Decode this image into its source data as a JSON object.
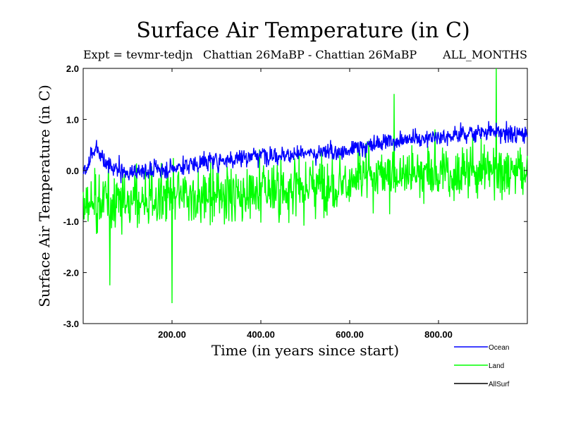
{
  "chart_data": {
    "type": "line",
    "title": "Surface Air Temperature (in C)",
    "subtitle_left": "Expt = tevmr-tedjn",
    "subtitle_mid": "Chattian  26MaBP - Chattian  26MaBP",
    "subtitle_right": "ALL_MONTHS",
    "xlabel": "Time (in years since start)",
    "ylabel": "Surface Air Temperature (in C)",
    "xlim": [
      0,
      1000
    ],
    "ylim": [
      -3.0,
      2.0
    ],
    "x_ticks": [
      200,
      400,
      600,
      800
    ],
    "x_tick_labels": [
      "200.00",
      "400.00",
      "600.00",
      "800.00"
    ],
    "y_ticks": [
      -3.0,
      -2.0,
      -1.0,
      0.0,
      1.0,
      2.0
    ],
    "y_tick_labels": [
      "-3.0",
      "-2.0",
      "-1.0",
      "0.0",
      "1.0",
      "2.0"
    ],
    "series": [
      {
        "name": "Land",
        "color": "#00ff00",
        "trend": [
          [
            0,
            -0.75
          ],
          [
            50,
            -0.55
          ],
          [
            100,
            -0.6
          ],
          [
            200,
            -0.55
          ],
          [
            300,
            -0.45
          ],
          [
            400,
            -0.4
          ],
          [
            500,
            -0.3
          ],
          [
            600,
            -0.25
          ],
          [
            700,
            -0.05
          ],
          [
            800,
            -0.05
          ],
          [
            900,
            0.0
          ],
          [
            1000,
            0.0
          ]
        ],
        "noise_amplitude": 0.55,
        "extremes": [
          [
            200,
            -2.6
          ],
          [
            60,
            -2.25
          ],
          [
            930,
            2.0
          ],
          [
            700,
            1.5
          ]
        ]
      },
      {
        "name": "Ocean",
        "color": "#0000ff",
        "trend": [
          [
            0,
            -0.05
          ],
          [
            30,
            0.45
          ],
          [
            50,
            0.1
          ],
          [
            100,
            -0.05
          ],
          [
            200,
            0.05
          ],
          [
            300,
            0.2
          ],
          [
            400,
            0.3
          ],
          [
            500,
            0.3
          ],
          [
            600,
            0.4
          ],
          [
            700,
            0.6
          ],
          [
            800,
            0.65
          ],
          [
            900,
            0.75
          ],
          [
            1000,
            0.7
          ]
        ],
        "noise_amplitude": 0.18
      },
      {
        "name": "AllSurf",
        "color": "#000000"
      }
    ],
    "legend": {
      "placement": "bottom-right",
      "entries": [
        {
          "label": "Ocean",
          "color": "#0000ff"
        },
        {
          "label": "Land",
          "color": "#00ff00"
        },
        {
          "label": "AllSurf",
          "color": "#000000"
        }
      ]
    }
  }
}
